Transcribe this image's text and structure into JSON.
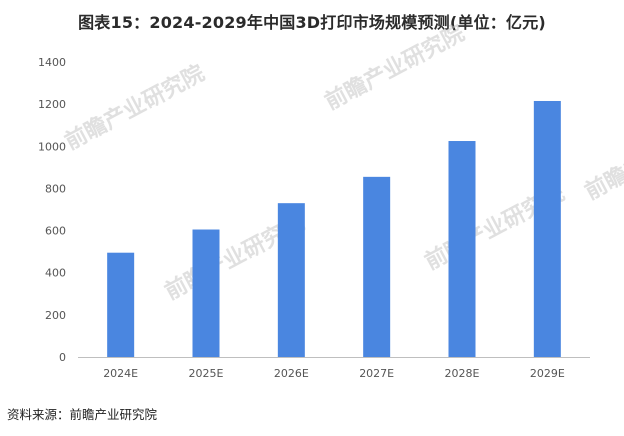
{
  "chart_data": {
    "type": "bar",
    "title": "图表15：2024-2029年中国3D打印市场规模预测(单位：亿元)",
    "categories": [
      "2024E",
      "2025E",
      "2026E",
      "2027E",
      "2028E",
      "2029E"
    ],
    "values": [
      495,
      605,
      730,
      855,
      1025,
      1215
    ],
    "ylim": [
      0,
      1400
    ],
    "yticks": [
      0,
      200,
      400,
      600,
      800,
      1000,
      1200,
      1400
    ],
    "grid": false,
    "bar_color": "#4a86e0",
    "xlabel": "",
    "ylabel": ""
  },
  "source_text": "资料来源：前瞻产业研究院",
  "watermark_text": "前瞻产业研究院"
}
